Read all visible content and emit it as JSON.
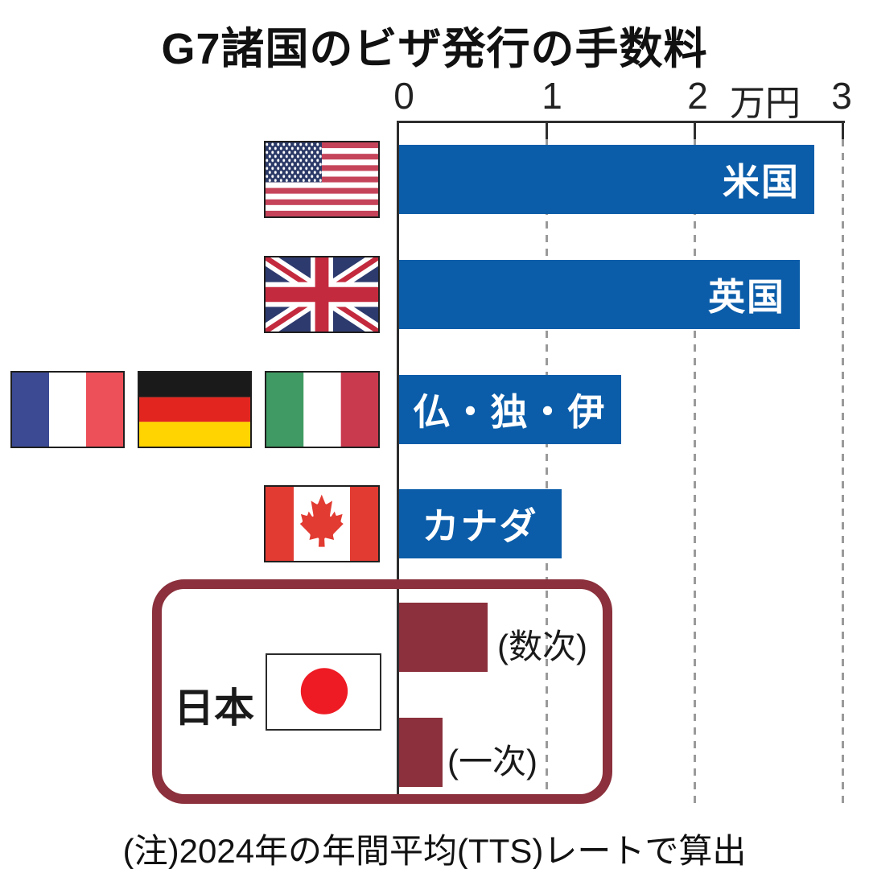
{
  "title": "G7諸国のビザ発行の手数料",
  "axis": {
    "tick_labels": [
      "0",
      "1",
      "2",
      "3"
    ],
    "unit_label": "万円"
  },
  "chart_data": {
    "type": "bar",
    "orientation": "horizontal",
    "title": "G7諸国のビザ発行の手数料",
    "xlabel": "万円",
    "xlim": [
      0,
      3
    ],
    "x_ticks": [
      0,
      1,
      2,
      3
    ],
    "grid": "dashed vertical gridlines at 1, 2, 3",
    "categories": [
      "米国",
      "英国",
      "仏・独・伊",
      "カナダ",
      "日本(数次)",
      "日本(一次)"
    ],
    "values": [
      2.8,
      2.7,
      1.5,
      1.1,
      0.6,
      0.3
    ],
    "note": "(注)2024年の年間平均(TTS)レートで算出"
  },
  "rows": [
    {
      "label": "米国",
      "flag": "united-states",
      "value": 2.8
    },
    {
      "label": "英国",
      "flag": "united-kingdom",
      "value": 2.7
    },
    {
      "label": "仏・独・伊",
      "flags": "france, germany, italy",
      "value": 1.5
    },
    {
      "label": "カナダ",
      "flag": "canada",
      "value": 1.1
    }
  ],
  "japan": {
    "label": "日本",
    "flag": "japan",
    "bars": [
      {
        "label": "(数次)",
        "value": 0.6
      },
      {
        "label": "(一次)",
        "value": 0.3
      }
    ]
  },
  "note": "(注)2024年の年間平均(TTS)レートで算出",
  "colors": {
    "bar_blue": "#0b5da9",
    "japan_red": "#8b303c",
    "axis_line": "#2e2e2e",
    "gridline": "#9a9a9a",
    "bar_label_text": "#ffffff"
  }
}
